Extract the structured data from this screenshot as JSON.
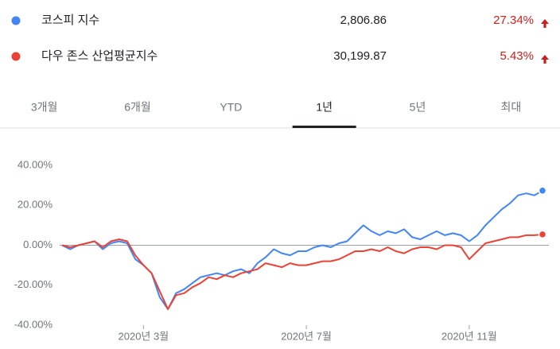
{
  "chart_data": {
    "type": "line",
    "tabs": [
      "3개월",
      "6개월",
      "YTD",
      "1년",
      "5년",
      "최대"
    ],
    "active_tab": 3,
    "categories": [
      null,
      null,
      null,
      null,
      null,
      null,
      null,
      null,
      null,
      null,
      "2020년 3월",
      null,
      null,
      null,
      null,
      null,
      null,
      null,
      null,
      null,
      null,
      null,
      null,
      null,
      null,
      null,
      null,
      null,
      null,
      null,
      "2020년 7월",
      null,
      null,
      null,
      null,
      null,
      null,
      null,
      null,
      null,
      null,
      null,
      null,
      null,
      null,
      null,
      null,
      null,
      null,
      null,
      "2020년 11월",
      null,
      null,
      null,
      null,
      null,
      null,
      null,
      null,
      null
    ],
    "series": [
      {
        "name": "코스피 지수",
        "color": "#4285f4",
        "price": "2,806.86",
        "change": "27.34%",
        "values": [
          0,
          -2,
          0,
          1,
          2,
          -2,
          1,
          2,
          1,
          -7,
          -10,
          -14,
          -26,
          -32,
          -24,
          -22,
          -19,
          -16,
          -15,
          -14,
          -15,
          -13,
          -12,
          -14,
          -9,
          -6,
          -2,
          -4,
          -5,
          -3,
          -3,
          -1,
          0,
          -1,
          1,
          2,
          6,
          10,
          7,
          5,
          7,
          6,
          8,
          4,
          3,
          5,
          7,
          5,
          6,
          5,
          2,
          5,
          10,
          14,
          18,
          21,
          25,
          26,
          25,
          27.34
        ]
      },
      {
        "name": "다우 존스 산업평균지수",
        "color": "#ea4335",
        "price": "30,199.87",
        "change": "5.43%",
        "values": [
          0,
          -1,
          0,
          1,
          2,
          -1,
          2,
          3,
          2,
          -5,
          -10,
          -14,
          -23,
          -32,
          -25,
          -24,
          -21,
          -19,
          -16,
          -17,
          -15,
          -16,
          -14,
          -13,
          -12,
          -9,
          -10,
          -11,
          -9,
          -10,
          -10,
          -9,
          -8,
          -8,
          -7,
          -5,
          -3,
          -3,
          -2,
          -3,
          -1,
          -3,
          -4,
          -2,
          -1,
          -1,
          -2,
          0,
          0,
          -1,
          -7,
          -3,
          1,
          2,
          3,
          4,
          4,
          5,
          5,
          5.43
        ]
      }
    ],
    "ylim": [
      -40,
      40
    ],
    "yticks": [
      {
        "value": 40,
        "label": "40.00%"
      },
      {
        "value": 20,
        "label": "20.00%"
      },
      {
        "value": 0,
        "label": "0.00%"
      },
      {
        "value": -20,
        "label": "-20.00%"
      },
      {
        "value": -40,
        "label": "-40.00%"
      }
    ]
  }
}
